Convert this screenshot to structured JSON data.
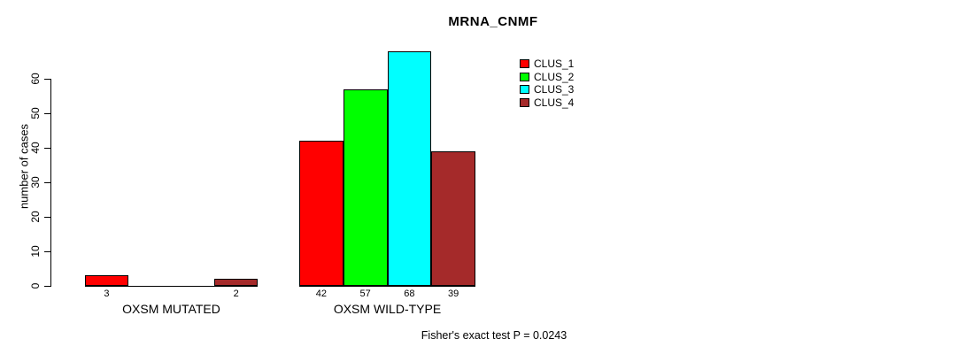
{
  "chart_data": {
    "type": "bar",
    "title": "MRNA_CNMF",
    "ylabel": "number of cases",
    "xlabel": "",
    "ylim": [
      0,
      60
    ],
    "yticks": [
      0,
      10,
      20,
      30,
      40,
      50,
      60
    ],
    "grid": false,
    "legend_position": "top-right",
    "categories": [
      "OXSM MUTATED",
      "OXSM WILD-TYPE"
    ],
    "series": [
      {
        "name": "CLUS_1",
        "color": "#FF0000",
        "values": [
          3,
          42
        ]
      },
      {
        "name": "CLUS_2",
        "color": "#00FF00",
        "values": [
          0,
          57
        ]
      },
      {
        "name": "CLUS_3",
        "color": "#00FFFF",
        "values": [
          0,
          68
        ]
      },
      {
        "name": "CLUS_4",
        "color": "#A52A2A",
        "values": [
          2,
          39
        ]
      }
    ],
    "bar_value_labels": {
      "shown": true,
      "hidden_when_zero": true
    },
    "annotation": "Fisher's exact test P = 0.0243",
    "axis_color": "#000000",
    "background_color": "#FFFFFF"
  }
}
